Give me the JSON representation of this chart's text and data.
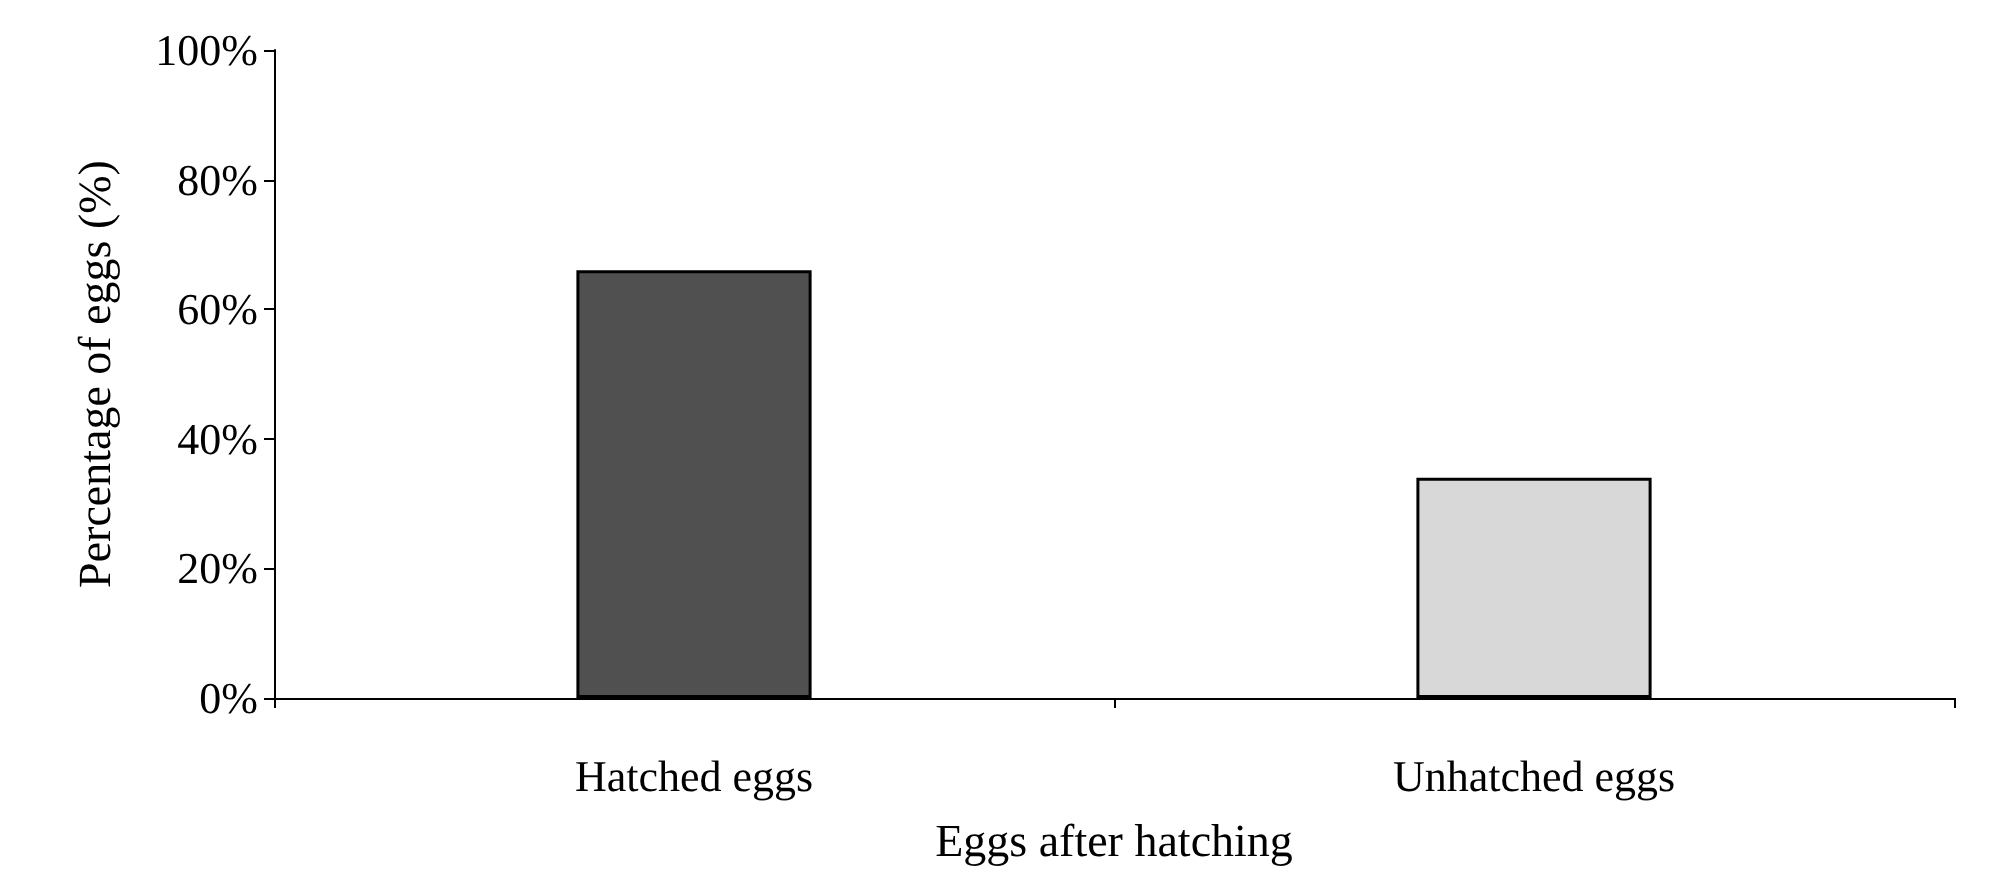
{
  "chart_data": {
    "type": "bar",
    "xlabel": "Eggs after hatching",
    "ylabel": "Percentage of eggs (%)",
    "categories": [
      "Hatched eggs",
      "Unhatched eggs"
    ],
    "values": [
      66,
      34
    ],
    "colors": [
      "#505050",
      "#d8d8d8"
    ],
    "ylim": [
      0,
      100
    ],
    "yticks": [
      {
        "value": 0,
        "label": "0%"
      },
      {
        "value": 20,
        "label": "20%"
      },
      {
        "value": 40,
        "label": "40%"
      },
      {
        "value": 60,
        "label": "60%"
      },
      {
        "value": 80,
        "label": "80%"
      },
      {
        "value": 100,
        "label": "100%"
      }
    ],
    "line_style": "solid"
  }
}
